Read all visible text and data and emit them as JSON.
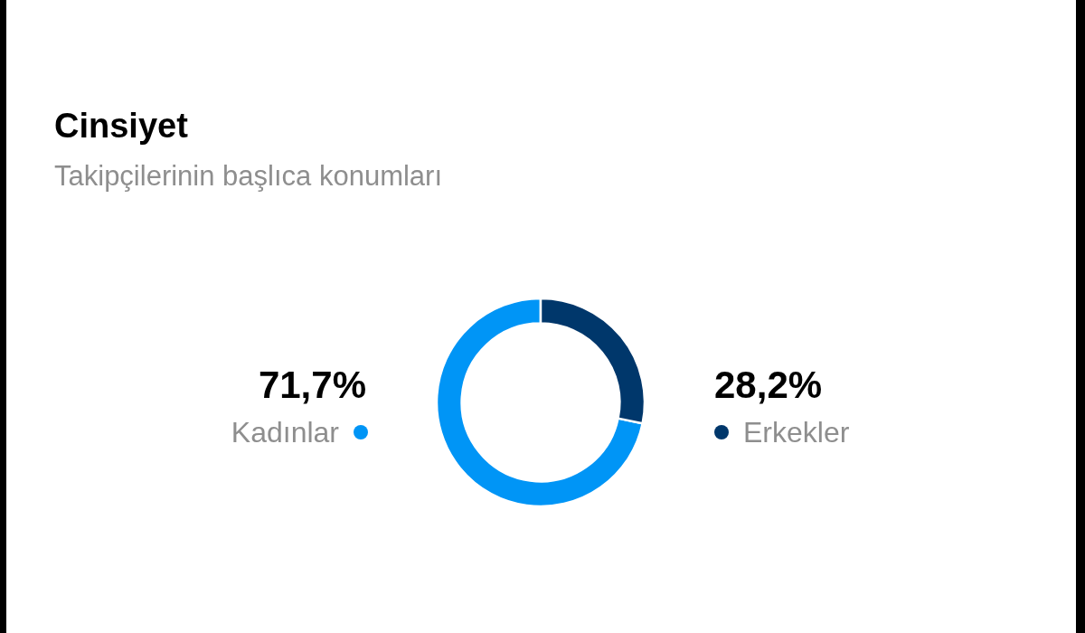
{
  "chart_data": {
    "type": "donut",
    "title": "Cinsiyet",
    "subtitle": "Takipçilerinin başlıca konumları",
    "categories": [
      "Kadınlar",
      "Erkekler"
    ],
    "values": [
      71.7,
      28.2
    ],
    "colors": [
      "#0095f6",
      "#00376b"
    ],
    "value_labels": [
      "71,7%",
      "28,2%"
    ]
  }
}
